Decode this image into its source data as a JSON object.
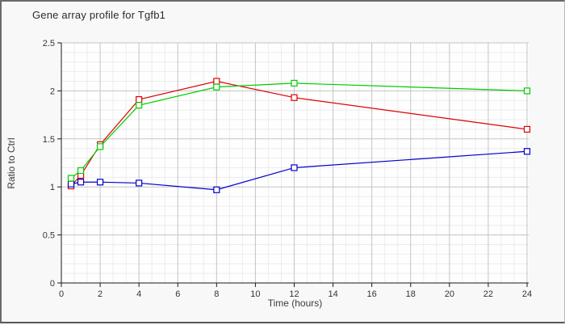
{
  "chart_data": {
    "type": "line",
    "title": "Gene array profile for Tgfb1",
    "xlabel": "Time (hours)",
    "ylabel": "Ratio to Ctrl",
    "xlim": [
      0,
      24
    ],
    "ylim": [
      0,
      2.5
    ],
    "x_ticks": [
      0,
      2,
      4,
      6,
      8,
      10,
      12,
      14,
      16,
      18,
      20,
      22,
      24
    ],
    "x_tick_labels": [
      "0",
      "2",
      "4",
      "6",
      "8",
      "10",
      "12",
      "14",
      "16",
      "18",
      "20",
      "22",
      "24"
    ],
    "y_ticks": [
      0,
      0.5,
      1,
      1.5,
      2,
      2.5
    ],
    "y_tick_labels": [
      "0",
      "0.5",
      "1",
      "1.5",
      "2",
      "2.5"
    ],
    "minor_x_step": 0.6666667,
    "minor_y_step": 0.1,
    "grid": "on",
    "legend": "none",
    "marker": "open-square",
    "x": [
      0.5,
      1,
      2,
      4,
      8,
      12,
      24
    ],
    "series": [
      {
        "name": "red-series",
        "color": "#dd0000",
        "values": [
          1.01,
          1.12,
          1.44,
          1.91,
          2.1,
          1.93,
          1.6
        ]
      },
      {
        "name": "blue-series",
        "color": "#0000cc",
        "values": [
          1.03,
          1.05,
          1.05,
          1.04,
          0.97,
          1.2,
          1.37
        ]
      },
      {
        "name": "green-series",
        "color": "#00cc00",
        "values": [
          1.09,
          1.17,
          1.42,
          1.85,
          2.04,
          2.08,
          2.0
        ]
      }
    ],
    "colors": {
      "frame_background": "#f8f8f8",
      "plot_background": "#fefefe",
      "grid_minor": "#ececec",
      "grid_major": "#c4c4c4",
      "axis": "#1a1a1a",
      "tick_text": "#333333"
    }
  }
}
